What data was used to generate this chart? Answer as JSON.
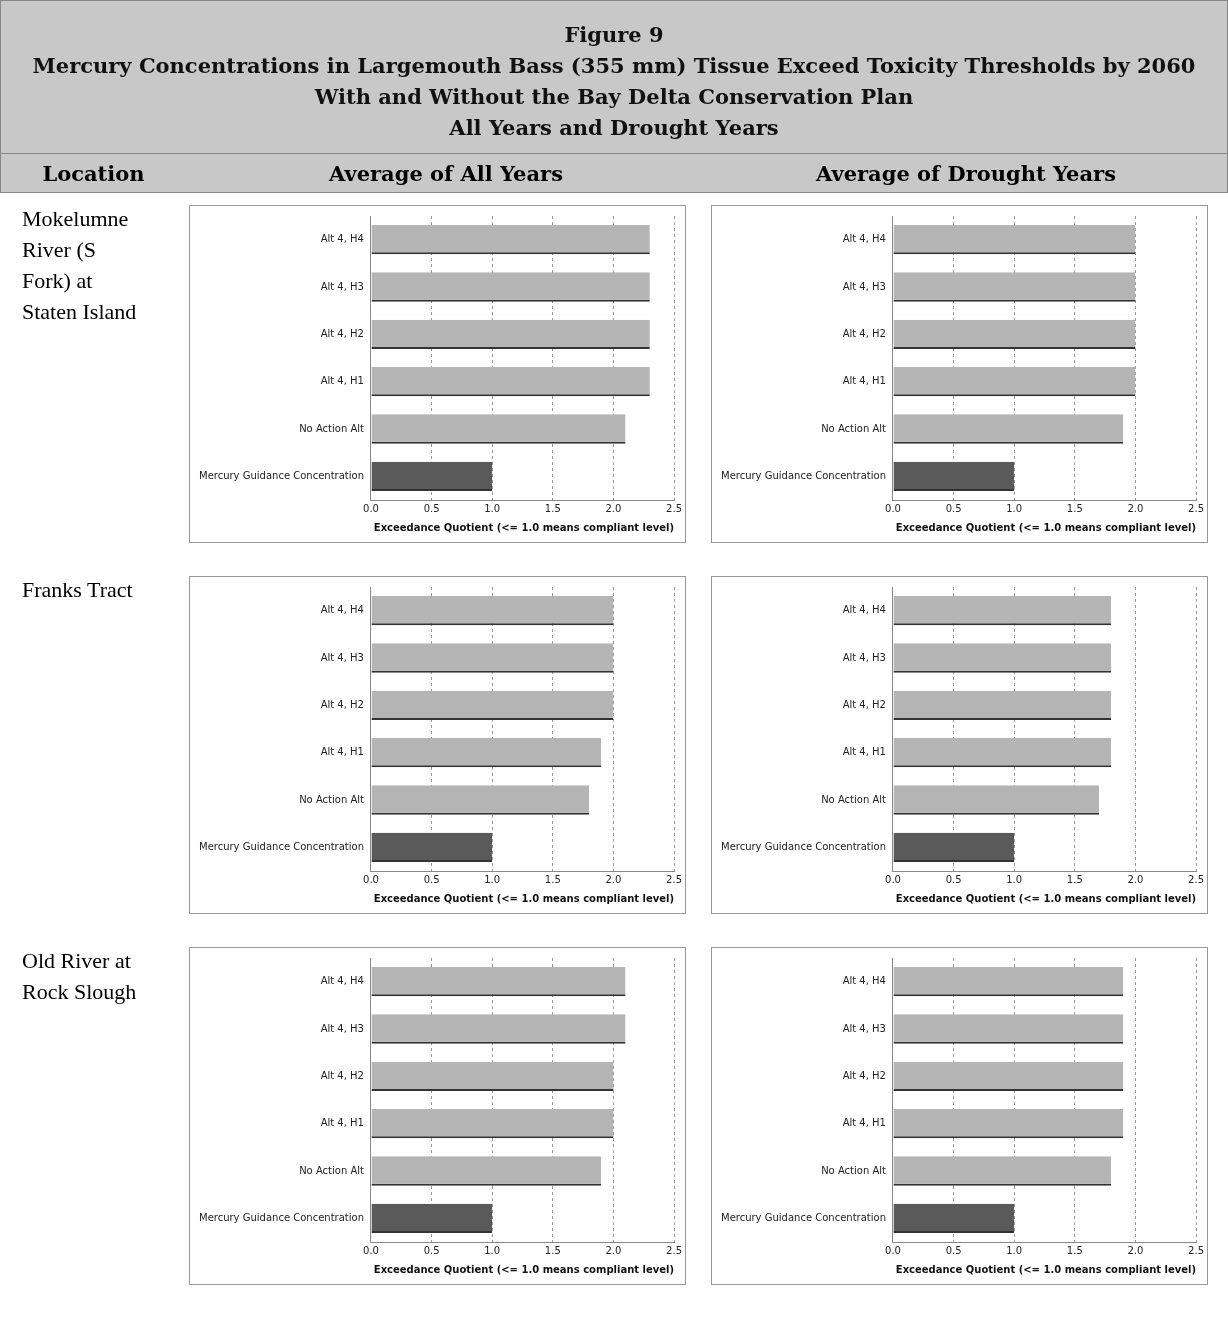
{
  "chart_data": [
    {
      "type": "bar",
      "orientation": "horizontal",
      "title": "Figure 9\nMercury Concentrations in Largemouth Bass (355 mm) Tissue Exceed Toxicity Thresholds by 2060\nWith and Without the Bay Delta Conservation Plan\nAll Years and Drought Years",
      "subtitle": "Average of All Years",
      "annotations": [
        "Location",
        "Mokelumne River (S Fork) at Staten Island"
      ],
      "categories": [
        "Alt 4, H4",
        "Alt 4, H3",
        "Alt 4, H2",
        "Alt 4, H1",
        "No Action Alt",
        "Mercury Guidance Concentration"
      ],
      "values": [
        2.3,
        2.3,
        2.3,
        2.3,
        2.1,
        1.0
      ],
      "colors": [
        "#b5b5b5",
        "#b5b5b5",
        "#b5b5b5",
        "#b5b5b5",
        "#b5b5b5",
        "#5a5a5a"
      ],
      "xlabel": "Exceedance Quotient (<= 1.0 means compliant level)",
      "xlim": [
        0,
        2.5
      ],
      "xticks": [
        {
          "value": 0,
          "label": "0.0"
        },
        {
          "value": 0.5,
          "label": "0.5"
        },
        {
          "value": 1,
          "label": "1.0"
        },
        {
          "value": 1.5,
          "label": "1.5"
        },
        {
          "value": 2,
          "label": "2.0"
        },
        {
          "value": 2.5,
          "label": "2.5"
        }
      ],
      "grid": "x",
      "legend": false
    },
    {
      "type": "bar",
      "orientation": "horizontal",
      "subtitle": "Average of Drought Years",
      "categories": [
        "Alt 4, H4",
        "Alt 4, H3",
        "Alt 4, H2",
        "Alt 4, H1",
        "No Action Alt",
        "Mercury Guidance Concentration"
      ],
      "values": [
        2.0,
        2.0,
        2.0,
        2.0,
        1.9,
        1.0
      ],
      "colors": [
        "#b5b5b5",
        "#b5b5b5",
        "#b5b5b5",
        "#b5b5b5",
        "#b5b5b5",
        "#5a5a5a"
      ],
      "xlabel": "Exceedance Quotient (<= 1.0 means compliant level)",
      "xlim": [
        0,
        2.5
      ],
      "xticks": [
        {
          "value": 0,
          "label": "0.0"
        },
        {
          "value": 0.5,
          "label": "0.5"
        },
        {
          "value": 1,
          "label": "1.0"
        },
        {
          "value": 1.5,
          "label": "1.5"
        },
        {
          "value": 2,
          "label": "2.0"
        },
        {
          "value": 2.5,
          "label": "2.5"
        }
      ],
      "grid": "x",
      "legend": false
    },
    {
      "type": "bar",
      "orientation": "horizontal",
      "annotations": [
        "Franks Tract"
      ],
      "categories": [
        "Alt 4, H4",
        "Alt 4, H3",
        "Alt 4, H2",
        "Alt 4, H1",
        "No Action Alt",
        "Mercury Guidance Concentration"
      ],
      "values": [
        2.0,
        2.0,
        2.0,
        1.9,
        1.8,
        1.0
      ],
      "colors": [
        "#b5b5b5",
        "#b5b5b5",
        "#b5b5b5",
        "#b5b5b5",
        "#b5b5b5",
        "#5a5a5a"
      ],
      "xlabel": "Exceedance Quotient (<= 1.0 means compliant level)",
      "xlim": [
        0,
        2.5
      ],
      "xticks": [
        {
          "value": 0,
          "label": "0.0"
        },
        {
          "value": 0.5,
          "label": "0.5"
        },
        {
          "value": 1,
          "label": "1.0"
        },
        {
          "value": 1.5,
          "label": "1.5"
        },
        {
          "value": 2,
          "label": "2.0"
        },
        {
          "value": 2.5,
          "label": "2.5"
        }
      ],
      "grid": "x",
      "legend": false
    },
    {
      "type": "bar",
      "orientation": "horizontal",
      "categories": [
        "Alt 4, H4",
        "Alt 4, H3",
        "Alt 4, H2",
        "Alt 4, H1",
        "No Action Alt",
        "Mercury Guidance Concentration"
      ],
      "values": [
        1.8,
        1.8,
        1.8,
        1.8,
        1.7,
        1.0
      ],
      "colors": [
        "#b5b5b5",
        "#b5b5b5",
        "#b5b5b5",
        "#b5b5b5",
        "#b5b5b5",
        "#5a5a5a"
      ],
      "xlabel": "Exceedance Quotient (<= 1.0 means compliant level)",
      "xlim": [
        0,
        2.5
      ],
      "xticks": [
        {
          "value": 0,
          "label": "0.0"
        },
        {
          "value": 0.5,
          "label": "0.5"
        },
        {
          "value": 1,
          "label": "1.0"
        },
        {
          "value": 1.5,
          "label": "1.5"
        },
        {
          "value": 2,
          "label": "2.0"
        },
        {
          "value": 2.5,
          "label": "2.5"
        }
      ],
      "grid": "x",
      "legend": false
    },
    {
      "type": "bar",
      "orientation": "horizontal",
      "annotations": [
        "Old River at Rock Slough"
      ],
      "categories": [
        "Alt 4, H4",
        "Alt 4, H3",
        "Alt 4, H2",
        "Alt 4, H1",
        "No Action Alt",
        "Mercury Guidance Concentration"
      ],
      "values": [
        2.1,
        2.1,
        2.0,
        2.0,
        1.9,
        1.0
      ],
      "colors": [
        "#b5b5b5",
        "#b5b5b5",
        "#b5b5b5",
        "#b5b5b5",
        "#b5b5b5",
        "#5a5a5a"
      ],
      "xlabel": "Exceedance Quotient (<= 1.0 means compliant level)",
      "xlim": [
        0,
        2.5
      ],
      "xticks": [
        {
          "value": 0,
          "label": "0.0"
        },
        {
          "value": 0.5,
          "label": "0.5"
        },
        {
          "value": 1,
          "label": "1.0"
        },
        {
          "value": 1.5,
          "label": "1.5"
        },
        {
          "value": 2,
          "label": "2.0"
        },
        {
          "value": 2.5,
          "label": "2.5"
        }
      ],
      "grid": "x",
      "legend": false
    },
    {
      "type": "bar",
      "orientation": "horizontal",
      "categories": [
        "Alt 4, H4",
        "Alt 4, H3",
        "Alt 4, H2",
        "Alt 4, H1",
        "No Action Alt",
        "Mercury Guidance Concentration"
      ],
      "values": [
        1.9,
        1.9,
        1.9,
        1.9,
        1.8,
        1.0
      ],
      "colors": [
        "#b5b5b5",
        "#b5b5b5",
        "#b5b5b5",
        "#b5b5b5",
        "#b5b5b5",
        "#5a5a5a"
      ],
      "xlabel": "Exceedance Quotient (<= 1.0 means compliant level)",
      "xlim": [
        0,
        2.5
      ],
      "xticks": [
        {
          "value": 0,
          "label": "0.0"
        },
        {
          "value": 0.5,
          "label": "0.5"
        },
        {
          "value": 1,
          "label": "1.0"
        },
        {
          "value": 1.5,
          "label": "1.5"
        },
        {
          "value": 2,
          "label": "2.0"
        },
        {
          "value": 2.5,
          "label": "2.5"
        }
      ],
      "grid": "x",
      "legend": false
    }
  ]
}
